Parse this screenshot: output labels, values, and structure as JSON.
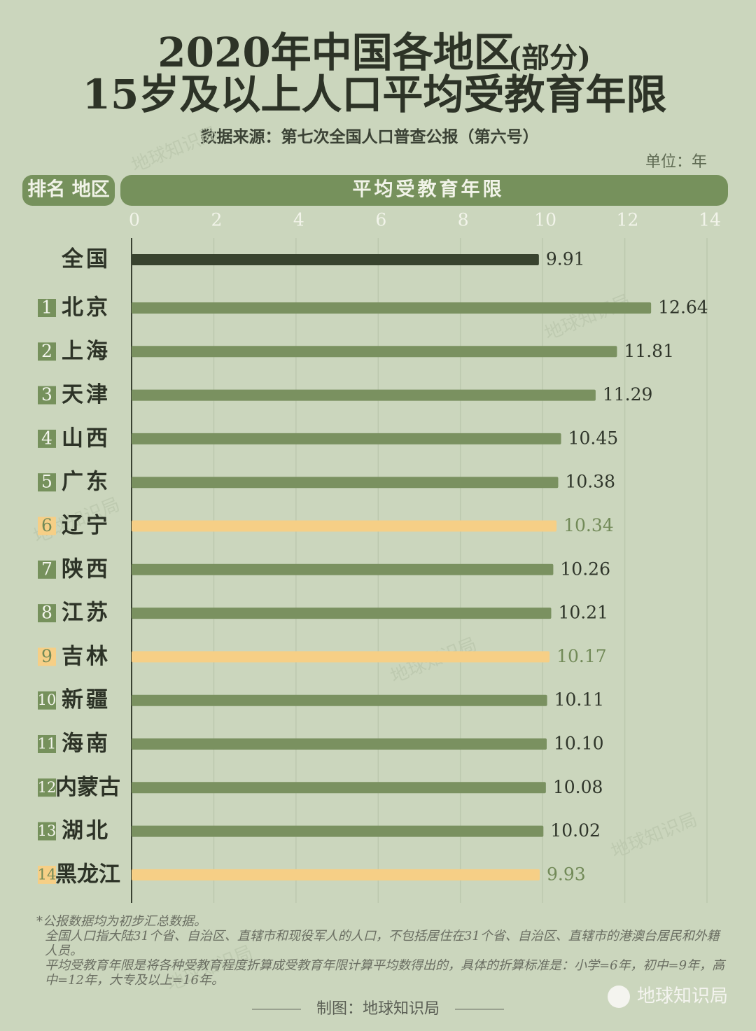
{
  "chart_data": {
    "type": "bar",
    "title": "2020年中国各地区",
    "title_note": "(部分)",
    "subtitle": "15岁及以上人口平均受教育年限",
    "source": "数据来源：第七次全国人口普查公报（第六号）",
    "unit": "单位：年",
    "header_left": "排名 地区",
    "header_right": "平均受教育年限",
    "ranks": [
      null,
      "1",
      "2",
      "3",
      "4",
      "5",
      "6",
      "7",
      "8",
      "9",
      "10",
      "11",
      "12",
      "13",
      "14"
    ],
    "categories": [
      "全国",
      "北京",
      "上海",
      "天津",
      "山西",
      "广东",
      "辽宁",
      "陕西",
      "江苏",
      "吉林",
      "新疆",
      "海南",
      "内蒙古",
      "湖北",
      "黑龙江"
    ],
    "values": [
      9.91,
      12.64,
      11.81,
      11.29,
      10.45,
      10.38,
      10.34,
      10.26,
      10.21,
      10.17,
      10.11,
      10.1,
      10.08,
      10.02,
      9.93
    ],
    "value_labels": [
      "9.91",
      "12.64",
      "11.81",
      "11.29",
      "10.45",
      "10.38",
      "10.34",
      "10.26",
      "10.21",
      "10.17",
      "10.11",
      "10.10",
      "10.08",
      "10.02",
      "9.93"
    ],
    "colors": [
      "#38432e",
      "#7a9160",
      "#7a9160",
      "#7a9160",
      "#7a9160",
      "#7a9160",
      "#f6cf86",
      "#7a9160",
      "#7a9160",
      "#f6cf86",
      "#7a9160",
      "#7a9160",
      "#7a9160",
      "#7a9160",
      "#f6cf86"
    ],
    "xlim": [
      0,
      14
    ],
    "xticks": [
      0,
      2,
      4,
      6,
      8,
      10,
      12,
      14
    ],
    "grid": true,
    "notes": [
      "*公报数据均为初步汇总数据。",
      "全国人口指大陆31个省、自治区、直辖市和现役军人的人口，不包括居住在31个省、自治区、直辖市的港澳台居民和外籍人员。",
      "平均受教育年限是将各种受教育程度折算成受教育年限计算平均数得出的，具体的折算标准是：小学=6年，初中=9年，高中=12年，大专及以上=16年。"
    ],
    "credit": "制图：地球知识局",
    "watermark": "地球知识局"
  }
}
